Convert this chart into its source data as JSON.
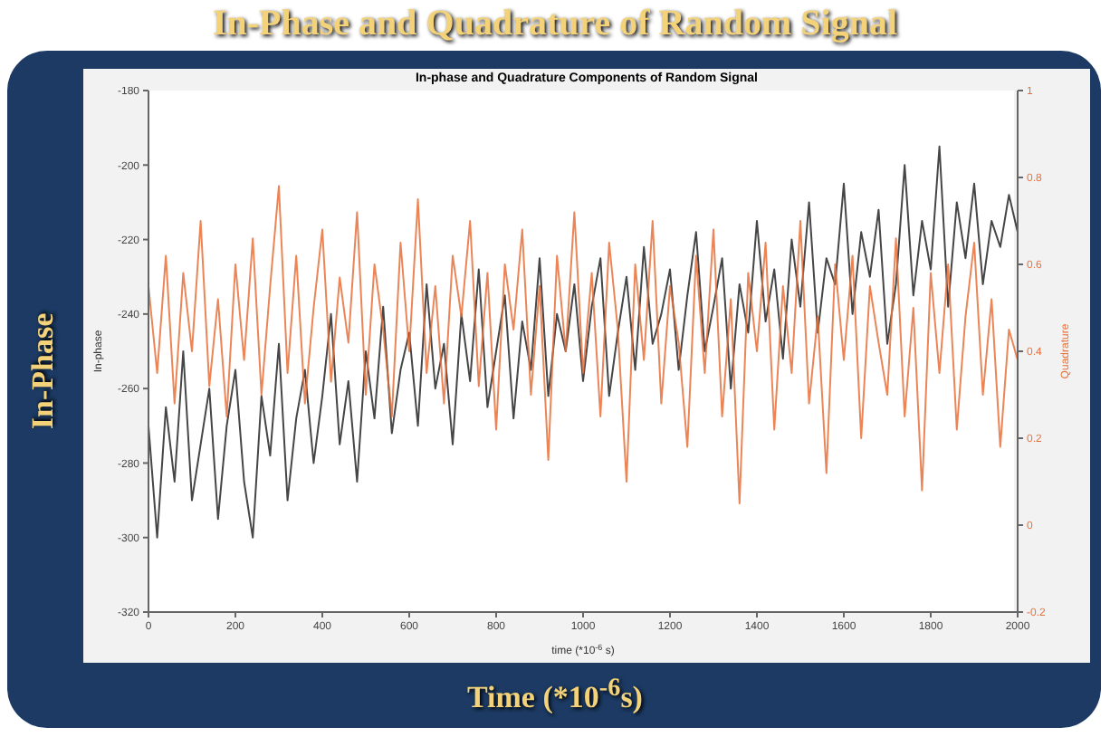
{
  "chart_data": {
    "type": "line",
    "title": "In-Phase and Quadrature of Random Signal",
    "subtitle": "In-phase and Quadrature Components of Random Signal",
    "xlabel": "time (*10$^{-6}$ s)",
    "ylabel": "In-phase",
    "y2label": "Quadrature",
    "annotations": [
      "In-Phase",
      "Time (*10$^{-6}$s)"
    ],
    "x": [
      0,
      20,
      40,
      60,
      80,
      100,
      120,
      140,
      160,
      180,
      200,
      220,
      240,
      260,
      280,
      300,
      320,
      340,
      360,
      380,
      400,
      420,
      440,
      460,
      480,
      500,
      520,
      540,
      560,
      580,
      600,
      620,
      640,
      660,
      680,
      700,
      720,
      740,
      760,
      780,
      800,
      820,
      840,
      860,
      880,
      900,
      920,
      940,
      960,
      980,
      1000,
      1020,
      1040,
      1060,
      1080,
      1100,
      1120,
      1140,
      1160,
      1180,
      1200,
      1220,
      1240,
      1260,
      1280,
      1300,
      1320,
      1340,
      1360,
      1380,
      1400,
      1420,
      1440,
      1460,
      1480,
      1500,
      1520,
      1540,
      1560,
      1580,
      1600,
      1620,
      1640,
      1660,
      1680,
      1700,
      1720,
      1740,
      1760,
      1780,
      1800,
      1820,
      1840,
      1860,
      1880,
      1900,
      1920,
      1940,
      1960,
      1980,
      2000
    ],
    "series": [
      {
        "color": "#262626",
        "values": [
          -270,
          -300,
          -265,
          -285,
          -250,
          -290,
          -275,
          -260,
          -295,
          -270,
          -255,
          -285,
          -300,
          -262,
          -278,
          -248,
          -290,
          -268,
          -255,
          -280,
          -262,
          -240,
          -275,
          -258,
          -285,
          -250,
          -268,
          -238,
          -272,
          -255,
          -245,
          -270,
          -232,
          -260,
          -248,
          -275,
          -240,
          -258,
          -228,
          -265,
          -250,
          -235,
          -268,
          -242,
          -255,
          -225,
          -262,
          -240,
          -250,
          -232,
          -258,
          -238,
          -225,
          -262,
          -245,
          -230,
          -255,
          -222,
          -248,
          -240,
          -228,
          -255,
          -235,
          -218,
          -250,
          -238,
          -225,
          -260,
          -232,
          -245,
          -215,
          -242,
          -228,
          -252,
          -220,
          -238,
          -210,
          -245,
          -225,
          -232,
          -205,
          -240,
          -218,
          -230,
          -212,
          -248,
          -232,
          -200,
          -235,
          -215,
          -228,
          -195,
          -238,
          -210,
          -225,
          -205,
          -232,
          -215,
          -222,
          -208,
          -218
        ]
      },
      {
        "color": "#e8703a",
        "axis": "y2",
        "values": [
          0.55,
          0.35,
          0.62,
          0.28,
          0.58,
          0.4,
          0.7,
          0.32,
          0.52,
          0.25,
          0.6,
          0.38,
          0.66,
          0.3,
          0.55,
          0.78,
          0.35,
          0.62,
          0.28,
          0.5,
          0.68,
          0.33,
          0.57,
          0.42,
          0.72,
          0.3,
          0.6,
          0.45,
          0.25,
          0.65,
          0.4,
          0.75,
          0.35,
          0.55,
          0.28,
          0.62,
          0.48,
          0.7,
          0.32,
          0.58,
          0.22,
          0.6,
          0.45,
          0.68,
          0.3,
          0.55,
          0.15,
          0.62,
          0.4,
          0.72,
          0.35,
          0.58,
          0.25,
          0.65,
          0.45,
          0.1,
          0.6,
          0.38,
          0.7,
          0.28,
          0.55,
          0.42,
          0.18,
          0.62,
          0.35,
          0.68,
          0.25,
          0.52,
          0.05,
          0.58,
          0.4,
          0.65,
          0.22,
          0.55,
          0.35,
          0.7,
          0.28,
          0.48,
          0.12,
          0.6,
          0.38,
          0.62,
          0.2,
          0.55,
          0.42,
          0.3,
          0.66,
          0.25,
          0.5,
          0.08,
          0.58,
          0.35,
          0.6,
          0.22,
          0.48,
          0.65,
          0.3,
          0.52,
          0.18,
          0.45,
          0.38
        ]
      }
    ],
    "xlim": [
      0,
      2000
    ],
    "xticks": [
      0,
      200,
      400,
      600,
      800,
      1000,
      1200,
      1400,
      1600,
      1800,
      2000
    ],
    "ylim": [
      -320,
      -180
    ],
    "yticks": [
      -320,
      -300,
      -280,
      -260,
      -240,
      -220,
      -200,
      -180
    ],
    "y2lim": [
      -0.2,
      1
    ],
    "y2ticks": [
      -0.2,
      0,
      0.2,
      0.4,
      0.6,
      0.8,
      1
    ],
    "grid": false,
    "legend": false,
    "marker": "none",
    "line_style": "solid"
  }
}
